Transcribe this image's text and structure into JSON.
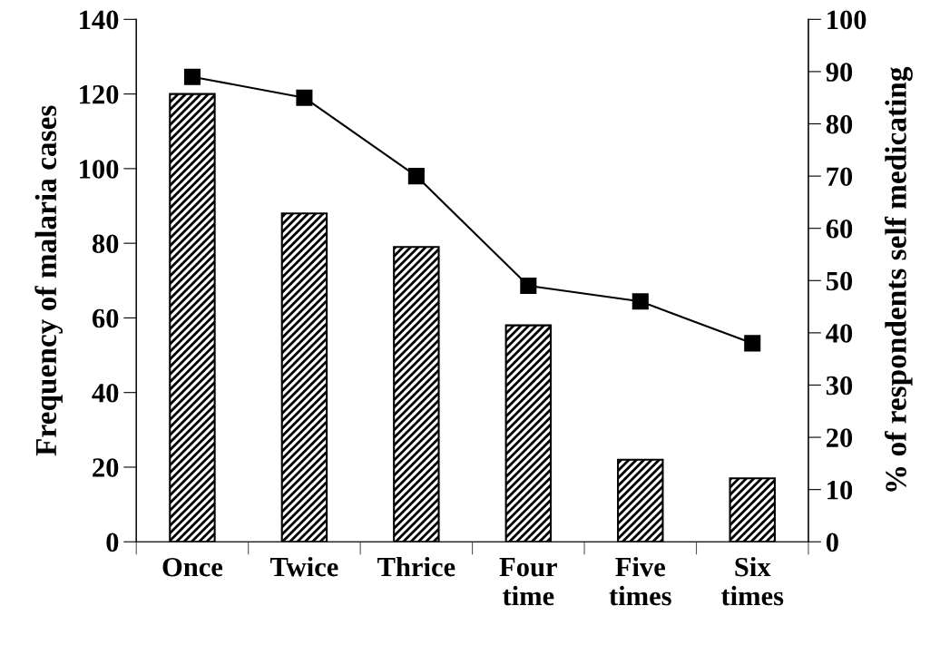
{
  "chart_data": {
    "type": "bar",
    "categories": [
      "Once",
      "Twice",
      "Thrice",
      "Four\ntime",
      "Five\ntimes",
      "Six\ntimes"
    ],
    "ylabel": "Frequency of malaria cases",
    "y2label": "% of respondents self medicating",
    "series": [
      {
        "color": "#000000",
        "values": [
          120,
          88,
          79,
          58,
          22,
          17
        ]
      },
      {
        "type": "line",
        "axis": "y2",
        "color": "#000000",
        "marker": "square",
        "line_style": "solid",
        "values": [
          89,
          85,
          70,
          49,
          46,
          38
        ]
      }
    ],
    "ylim": [
      0,
      140
    ],
    "yticks": [
      0,
      20,
      40,
      60,
      80,
      100,
      120,
      140
    ],
    "y2lim": [
      0,
      100
    ],
    "y2ticks": [
      0,
      10,
      20,
      30,
      40,
      50,
      60,
      70,
      80,
      90,
      100
    ],
    "grid": false,
    "legend": false
  }
}
